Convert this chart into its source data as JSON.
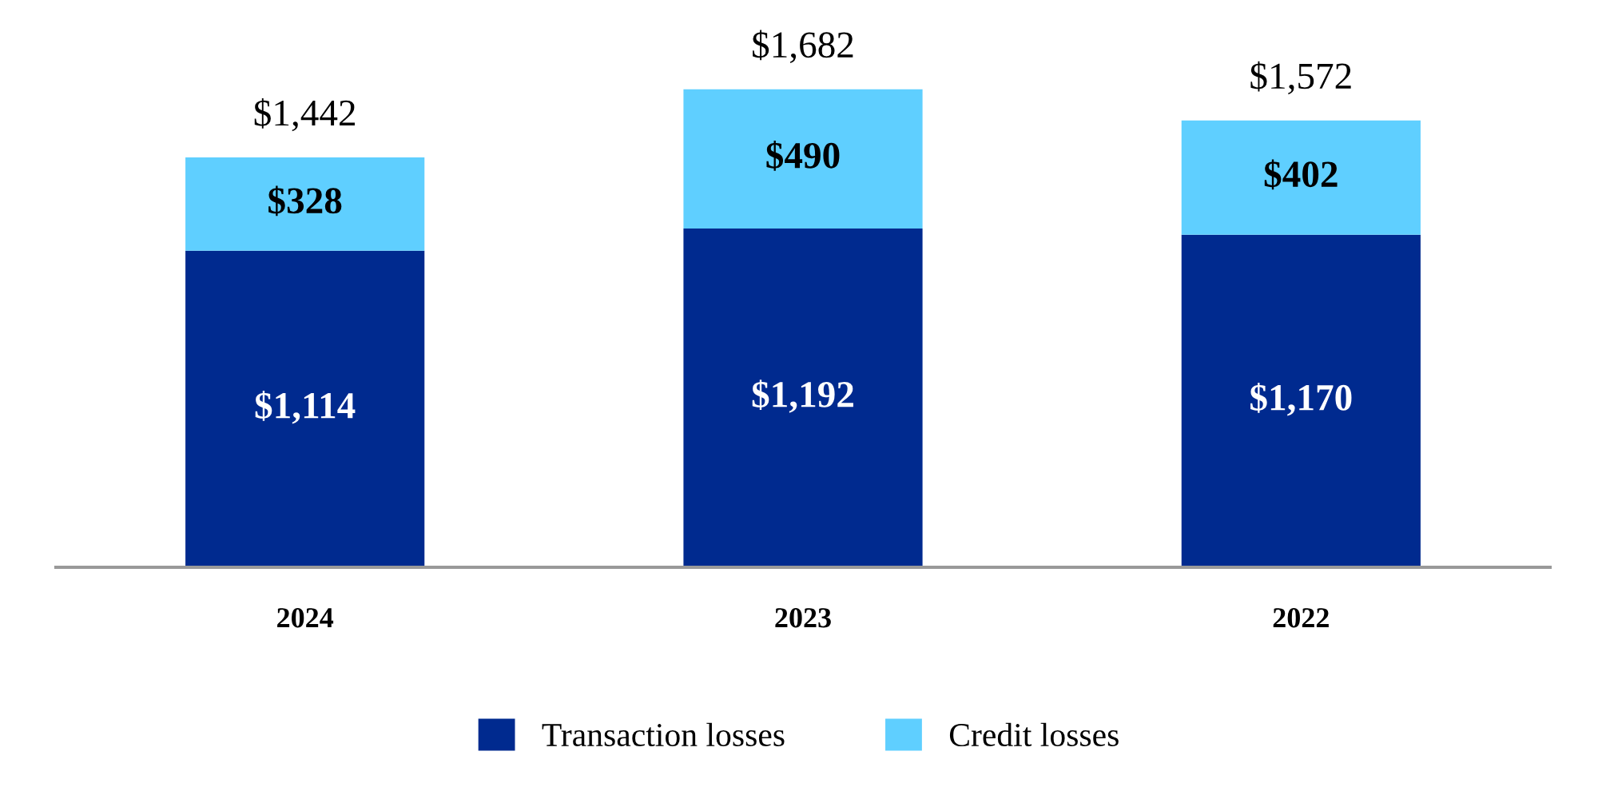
{
  "chart_data": {
    "type": "bar",
    "stacked": true,
    "categories": [
      "2024",
      "2023",
      "2022"
    ],
    "series": [
      {
        "name": "Transaction losses",
        "color": "#002a8f",
        "values": [
          1114,
          1192,
          1170
        ],
        "value_labels": [
          "$1,114",
          "$1,192",
          "$1,170"
        ]
      },
      {
        "name": "Credit losses",
        "color": "#5fcfff",
        "values": [
          328,
          490,
          402
        ],
        "value_labels": [
          "$328",
          "$490",
          "$402"
        ]
      }
    ],
    "totals": [
      "$1,442",
      "$1,682",
      "$1,572"
    ],
    "legend": "bottom",
    "grid": false
  }
}
